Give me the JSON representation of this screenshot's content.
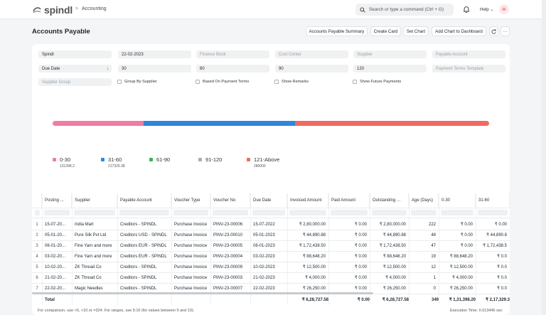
{
  "app": {
    "logo_text": "spindl",
    "breadcrumb": "Accounting"
  },
  "topbar": {
    "search_placeholder": "Search or type a command (Ctrl + G)",
    "help_label": "Help",
    "avatar_initial": "M"
  },
  "page": {
    "title": "Accounts Payable"
  },
  "actions": {
    "summary": "Accounts Payable Summary",
    "create_card": "Create Card",
    "set_chart": "Set Chart",
    "add_chart": "Add Chart to Dashboard",
    "refresh_icon": "refresh-icon",
    "more_icon": "ellipsis-icon"
  },
  "filters": {
    "company": "Spindl",
    "report_date": "22-02-2023",
    "finance_book_ph": "Finance Book",
    "cost_center_ph": "Cost Center",
    "supplier_ph": "Supplier",
    "payable_account_ph": "Payable Account",
    "ageing_based_on": "Due Date",
    "range1": "30",
    "range2": "60",
    "range3": "90",
    "range4": "120",
    "payment_terms_ph": "Payment Terms Template",
    "supplier_group_ph": "Supplier Group",
    "group_by_supplier": "Group By Supplier",
    "based_on_payment_terms": "Based On Payment Terms",
    "show_remarks": "Show Remarks",
    "show_future_payments": "Show Future Payments"
  },
  "chart_data": {
    "type": "bar",
    "orientation": "horizontal-stacked",
    "categories": [
      "0-30",
      "31-60",
      "61-90",
      "91-120",
      "121-Above"
    ],
    "values": [
      131398.2,
      217329.38,
      0,
      0,
      280000
    ],
    "value_labels": [
      "131398.2",
      "217329.38",
      "",
      "",
      "280000"
    ],
    "colors": [
      "#f07ca6",
      "#2f86dc",
      "#38b25f",
      "#a9aeb3",
      "#ef6b62"
    ],
    "legend_position": "bottom"
  },
  "table": {
    "columns": [
      "Posting ...",
      "Supplier",
      "Payable Account",
      "Voucher Type",
      "Voucher No",
      "Due Date",
      "Invoiced Amount",
      "Paid Amount",
      "Outstanding ...",
      "Age (Days)",
      "0-30",
      "31-60"
    ],
    "rows": [
      [
        "1",
        "15-07-20...",
        "India Mart",
        "Creditors - SPINDL",
        "Purchase Invoice",
        "PINV-23-00006",
        "15-07-2022",
        "₹ 2,80,000.00",
        "₹ 0.00",
        "₹ 2,80,000.00",
        "222",
        "₹ 0.00",
        "₹ 0.00"
      ],
      [
        "2",
        "05-01-20...",
        "Pure Silk Pvt Ltd",
        "Creditors USD - SPINDL",
        "Purchase Invoice",
        "PINV-23-00010",
        "05-01-2023",
        "₹ 44,890.88",
        "₹ 0.00",
        "₹ 44,890.88",
        "48",
        "₹ 0.00",
        "₹ 44,890.8"
      ],
      [
        "3",
        "06-01-20...",
        "Fine Yarn and more",
        "Creditors EUR - SPINDL",
        "Purchase Invoice",
        "PINV-23-00005",
        "06-01-2023",
        "₹ 1,72,438.50",
        "₹ 0.00",
        "₹ 1,72,438.50",
        "47",
        "₹ 0.00",
        "₹ 1,72,438.5"
      ],
      [
        "4",
        "03-02-20...",
        "Fine Yarn and more",
        "Creditors EUR - SPINDL",
        "Purchase Invoice",
        "PINV-23-00004",
        "03-02-2023",
        "₹ 88,648.20",
        "₹ 0.00",
        "₹ 88,648.20",
        "19",
        "₹ 88,648.20",
        "₹ 0.0"
      ],
      [
        "5",
        "10-02-20...",
        "ZK Thread Co",
        "Creditors - SPINDL",
        "Purchase Invoice",
        "PINV-23-00009",
        "10-02-2023",
        "₹ 12,500.00",
        "₹ 0.00",
        "₹ 12,500.00",
        "12",
        "₹ 12,500.00",
        "₹ 0.0"
      ],
      [
        "6",
        "21-02-20...",
        "ZK Thread Co",
        "Creditors - SPINDL",
        "Purchase Invoice",
        "PINV-23-00003",
        "21-02-2023",
        "₹ 4,000.00",
        "₹ 0.00",
        "₹ 4,000.00",
        "1",
        "₹ 4,000.00",
        "₹ 0.0"
      ],
      [
        "7",
        "22-02-20...",
        "Magic Needles",
        "Creditors - SPINDL",
        "Purchase Invoice",
        "PINV-23-00007",
        "22-02-2023",
        "₹ 26,250.00",
        "₹ 0.00",
        "₹ 26,250.00",
        "0",
        "₹ 26,250.00",
        "₹ 0.0"
      ]
    ],
    "total": {
      "label": "Total",
      "invoiced": "₹ 6,28,727.58",
      "paid": "₹ 0.00",
      "outstanding": "₹ 6,28,727.58",
      "age": "349",
      "r0_30": "₹ 1,31,398.20",
      "r31_60": "₹ 2,17,329.3"
    }
  },
  "footer": {
    "note": "For comparison, use >5, <10 or =324. For ranges, use 5:10 (for values between 5 and 10).",
    "exec_time": "Execution Time: 0.013445 sec"
  }
}
